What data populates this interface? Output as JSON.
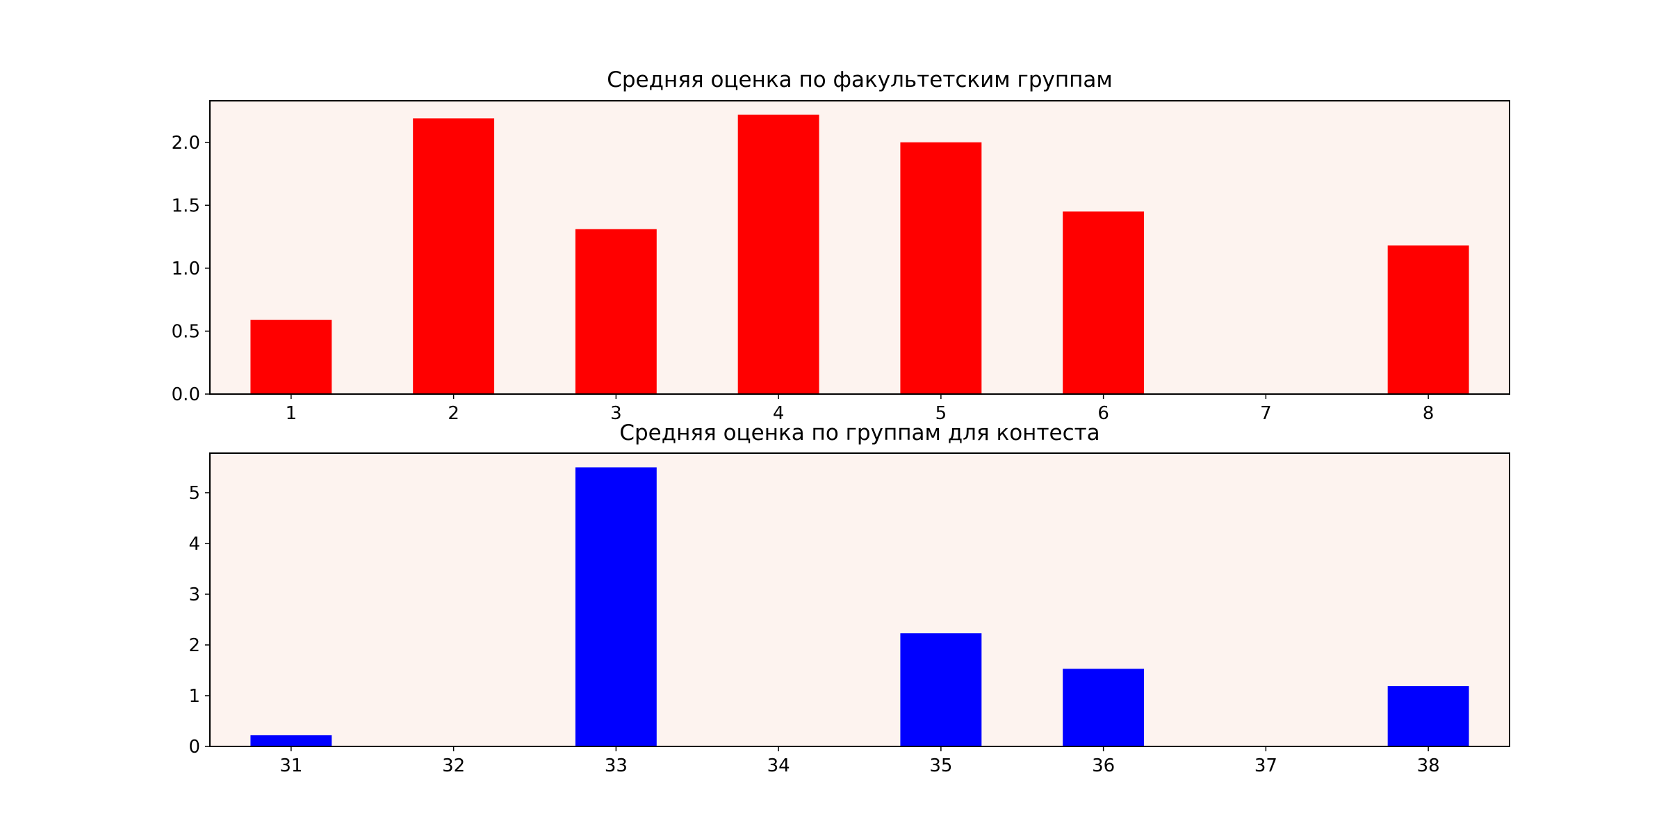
{
  "chart_data": [
    {
      "type": "bar",
      "title": "Средняя оценка по факультетским группам",
      "xlabel": "",
      "ylabel": "",
      "categories": [
        "1",
        "2",
        "3",
        "4",
        "5",
        "6",
        "7",
        "8"
      ],
      "values": [
        0.59,
        2.19,
        1.31,
        2.22,
        2.0,
        1.45,
        0,
        1.18
      ],
      "ylim": [
        0,
        2.33
      ],
      "yticks": [
        "0.0",
        "0.5",
        "1.0",
        "1.5",
        "2.0"
      ],
      "ytick_values": [
        0,
        0.5,
        1.0,
        1.5,
        2.0
      ],
      "bar_color": "#ff0000",
      "background_color": "#fdf3ef",
      "grid": false,
      "legend": "none"
    },
    {
      "type": "bar",
      "title": "Средняя оценка по группам для контеста",
      "xlabel": "",
      "ylabel": "",
      "categories": [
        "31",
        "32",
        "33",
        "34",
        "35",
        "36",
        "37",
        "38"
      ],
      "values": [
        0.22,
        0,
        5.5,
        0,
        2.23,
        1.53,
        0,
        1.19
      ],
      "ylim": [
        0,
        5.78
      ],
      "yticks": [
        "0",
        "1",
        "2",
        "3",
        "4",
        "5"
      ],
      "ytick_values": [
        0,
        1,
        2,
        3,
        4,
        5
      ],
      "bar_color": "#0000ff",
      "background_color": "#fdf3ef",
      "grid": false,
      "legend": "none"
    }
  ]
}
